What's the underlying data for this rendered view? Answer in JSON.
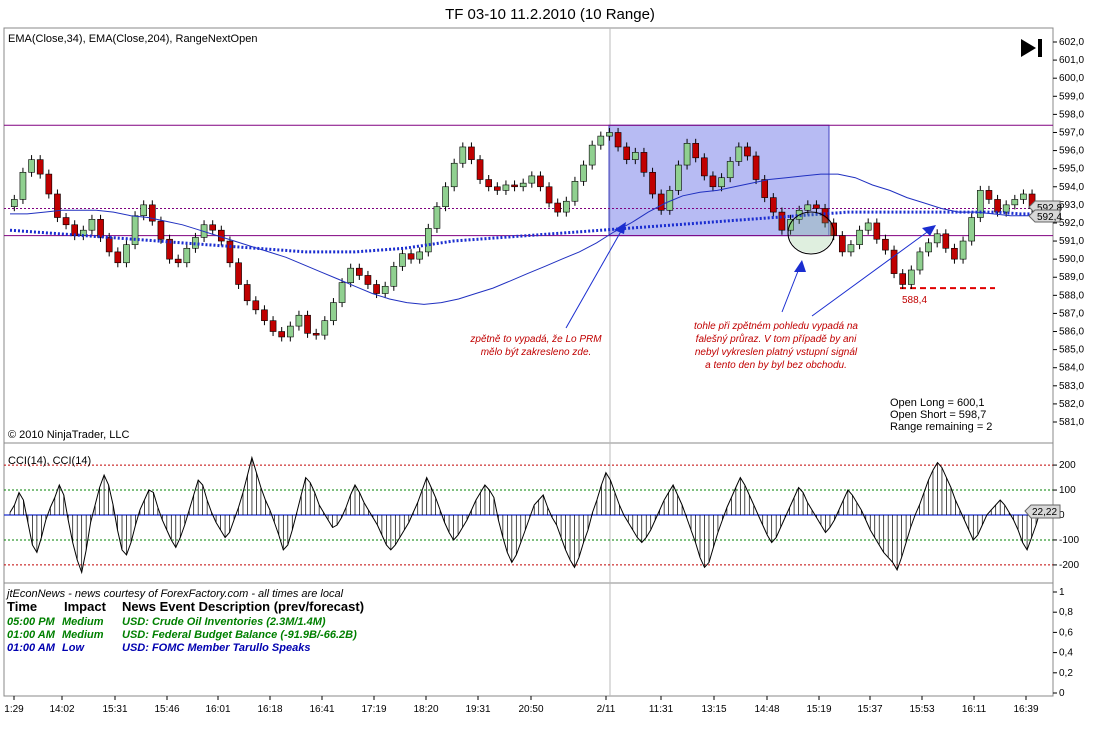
{
  "title": "TF 03-10  11.2.2010 (10 Range)",
  "indicator_label": "EMA(Close,34), EMA(Close,204), RangeNextOpen",
  "copyright": "© 2010 NinjaTrader, LLC",
  "cci_label": "CCI(14), CCI(14)",
  "info_box": [
    "Open Long = 600,1",
    "Open Short = 598,7",
    "Range remaining = 2"
  ],
  "annotations": {
    "left": [
      "zpětně to vypadá, že Lo PRM",
      "mělo být zakresleno zde."
    ],
    "right": [
      "tohle při zpětném pohledu vypadá na",
      "falešný průraz. V tom případě by ani",
      "nebyl vykreslen platný vstupní signál",
      "a tento den by byl bez obchodu."
    ],
    "level": "588,4"
  },
  "price_badges": [
    "592,8",
    "592,4"
  ],
  "cci_badge": "22,22",
  "news": {
    "source": "jtEconNews - news courtesy of ForexFactory.com - all times are local",
    "headers": [
      "Time",
      "Impact",
      "News Event Description (prev/forecast)"
    ],
    "rows": [
      {
        "time": "05:00 PM",
        "impact": "Medium",
        "desc": "USD: Crude Oil Inventories (2.3M/1.4M)",
        "color": "#008000"
      },
      {
        "time": "01:00 AM",
        "impact": "Medium",
        "desc": "USD: Federal Budget Balance (-91.9B/-66.2B)",
        "color": "#008000"
      },
      {
        "time": "01:00 AM",
        "impact": "Low",
        "desc": "USD: FOMC Member Tarullo Speaks",
        "color": "#0000b0"
      }
    ]
  },
  "colors": {
    "up": "#90d090",
    "down": "#c00000",
    "ema34": "#2030c0",
    "ema204": "#1a2dd0",
    "box": "#7b84ea",
    "band": "#800080"
  },
  "chart_data": [
    {
      "type": "candlestick",
      "title": "TF 03-10  11.2.2010 (10 Range)",
      "ylim": [
        580,
        602.5
      ],
      "y_ticks": [
        "602,0",
        "601,0",
        "600,0",
        "599,0",
        "598,0",
        "597,0",
        "596,0",
        "595,0",
        "594,0",
        "593,0",
        "592,0",
        "591,0",
        "590,0",
        "589,0",
        "588,0",
        "587,0",
        "586,0",
        "585,0",
        "584,0",
        "583,0",
        "582,0",
        "581,0"
      ],
      "x_labels": [
        "1:29",
        "14:02",
        "15:31",
        "15:46",
        "16:01",
        "16:18",
        "16:41",
        "17:19",
        "18:20",
        "19:31",
        "20:50",
        "2/11",
        "11:31",
        "13:15",
        "14:48",
        "15:19",
        "15:37",
        "15:53",
        "16:11",
        "16:39"
      ],
      "closes": [
        593.3,
        594.8,
        595.5,
        594.7,
        593.6,
        592.3,
        591.9,
        591.3,
        591.6,
        592.2,
        591.2,
        590.4,
        589.8,
        590.8,
        592.4,
        593.0,
        592.1,
        591.1,
        590.0,
        589.8,
        590.6,
        591.2,
        591.9,
        591.6,
        591.0,
        589.8,
        588.6,
        587.7,
        587.2,
        586.6,
        586.0,
        585.7,
        586.3,
        586.9,
        585.9,
        585.8,
        586.6,
        587.6,
        588.7,
        589.5,
        589.1,
        588.6,
        588.1,
        588.5,
        589.6,
        590.3,
        590.0,
        590.4,
        591.7,
        592.9,
        594.0,
        595.3,
        596.2,
        595.5,
        594.4,
        594.0,
        593.8,
        594.1,
        594.0,
        594.2,
        594.6,
        594.0,
        593.1,
        592.6,
        593.2,
        594.3,
        595.2,
        596.3,
        596.8,
        597.0,
        596.2,
        595.5,
        595.9,
        594.8,
        593.6,
        592.7,
        593.8,
        595.2,
        596.4,
        595.6,
        594.6,
        594.0,
        594.5,
        595.4,
        596.2,
        595.7,
        594.4,
        593.4,
        592.6,
        591.6,
        592.2,
        592.7,
        593.0,
        592.8,
        592.0,
        591.3,
        590.4,
        590.8,
        591.6,
        592.0,
        591.1,
        590.5,
        589.2,
        588.6,
        589.4,
        590.4,
        590.9,
        591.4,
        590.6,
        590.0,
        591.0,
        592.3,
        593.8,
        593.3,
        592.6,
        593.0,
        593.3,
        593.6,
        592.8,
        592.4
      ],
      "ema34": [
        592.5,
        592.5,
        592.6,
        592.7,
        592.7,
        592.7,
        592.6,
        592.4,
        592.3,
        592.1,
        591.9,
        591.6,
        591.3,
        591.0,
        590.7,
        590.4,
        590.1,
        589.7,
        589.3,
        588.9,
        588.5,
        588.1,
        587.8,
        587.6,
        587.5,
        587.6,
        587.8,
        588.1,
        588.4,
        588.8,
        589.2,
        589.6,
        590.0,
        590.4,
        590.9,
        591.5,
        592.0,
        592.6,
        593.1,
        593.5,
        593.7,
        593.8,
        594.0,
        594.2,
        594.4,
        594.5,
        594.6,
        594.7,
        594.7,
        594.5,
        594.1,
        593.8,
        593.4,
        593.1,
        592.8,
        592.6,
        592.6,
        592.5,
        592.4,
        592.4,
        592.8
      ],
      "ema204": [
        591.6,
        591.5,
        591.4,
        591.3,
        591.2,
        591.1,
        591.0,
        590.9,
        590.8,
        590.7,
        590.6,
        590.5,
        590.4,
        590.4,
        590.4,
        590.5,
        590.6,
        590.8,
        591.0,
        591.1,
        591.2,
        591.3,
        591.4,
        591.5,
        591.6,
        591.7,
        591.8,
        591.9,
        592.0,
        592.1,
        592.2,
        592.3,
        592.4,
        592.5,
        592.6,
        592.6,
        592.6,
        592.6,
        592.6,
        592.6,
        592.6,
        592.5,
        592.5
      ],
      "range_box": {
        "from_price": 591.3,
        "to_price": 597.4
      },
      "band_lines": [
        597.4,
        592.8,
        591.3
      ],
      "level_line": 588.4
    },
    {
      "type": "bar",
      "title": "CCI(14), CCI(14)",
      "ylim": [
        -250,
        250
      ],
      "y_ticks": [
        "200",
        "100",
        "0",
        "-100",
        "-200"
      ],
      "ref_lines": [
        200,
        100,
        -100,
        -200
      ],
      "values": [
        10,
        40,
        90,
        60,
        -30,
        -120,
        -150,
        -90,
        -20,
        30,
        70,
        120,
        80,
        -20,
        -110,
        -180,
        -230,
        -140,
        -30,
        40,
        110,
        160,
        120,
        40,
        -60,
        -140,
        -160,
        -110,
        -40,
        20,
        60,
        100,
        90,
        30,
        -20,
        -60,
        -100,
        -130,
        -90,
        -40,
        20,
        80,
        140,
        120,
        60,
        10,
        -30,
        -60,
        -90,
        -70,
        -20,
        30,
        90,
        160,
        230,
        170,
        110,
        60,
        20,
        -30,
        -80,
        -140,
        -120,
        -60,
        10,
        80,
        150,
        130,
        90,
        40,
        10,
        -20,
        -50,
        -40,
        -10,
        30,
        80,
        120,
        90,
        50,
        20,
        -10,
        -40,
        -80,
        -120,
        -140,
        -120,
        -90,
        -60,
        -30,
        10,
        50,
        100,
        150,
        110,
        70,
        20,
        -30,
        -70,
        -100,
        -80,
        -50,
        -20,
        20,
        60,
        90,
        120,
        100,
        70,
        -20,
        -90,
        -150,
        -190,
        -160,
        -110,
        -60,
        -10,
        40,
        60,
        80,
        30,
        -10,
        -40,
        -90,
        -140,
        -180,
        -210,
        -170,
        -110,
        -60,
        10,
        60,
        120,
        170,
        140,
        90,
        40,
        0,
        -30,
        -60,
        -90,
        -110,
        -90,
        -60,
        -20,
        20,
        60,
        90,
        120,
        80,
        40,
        -10,
        -60,
        -110,
        -170,
        -210,
        -190,
        -130,
        -70,
        -20,
        30,
        70,
        110,
        150,
        120,
        80,
        40,
        0,
        -40,
        -80,
        -110,
        -90,
        -50,
        -10,
        30,
        70,
        110,
        90,
        50,
        20,
        -10,
        -40,
        -70,
        -50,
        -20,
        20,
        60,
        100,
        80,
        50,
        20,
        -20,
        -60,
        -90,
        -120,
        -150,
        -170,
        -190,
        -220,
        -170,
        -110,
        -50,
        0,
        40,
        90,
        140,
        180,
        210,
        190,
        150,
        110,
        60,
        20,
        -20,
        -60,
        -100,
        -80,
        -40,
        0,
        20,
        40,
        60,
        40,
        10,
        -20,
        -60,
        -110,
        -140,
        -90,
        -40,
        20,
        22
      ]
    },
    {
      "type": "table",
      "ylim": [
        0,
        1
      ],
      "y_ticks": [
        "1",
        "0,8",
        "0,6",
        "0,4",
        "0,2",
        "0"
      ]
    }
  ]
}
